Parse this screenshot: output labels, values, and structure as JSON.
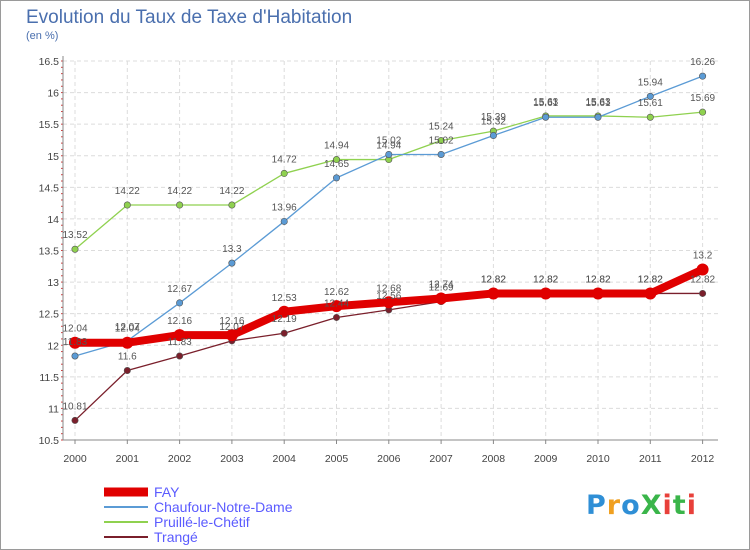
{
  "header": {
    "title": "Evolution du Taux de Taxe d'Habitation",
    "subtitle": "(en %)"
  },
  "logo": {
    "text": "ProXiti",
    "colors": [
      "#2f8fd6",
      "#f0a020",
      "#2f8fd6",
      "#3ab54a",
      "#e8403a",
      "#3ab54a",
      "#e8403a"
    ]
  },
  "chart_data": {
    "type": "line",
    "title": "Evolution du Taux de Taxe d'Habitation",
    "ylabel": "(en %)",
    "xlabel": "",
    "x": [
      "2000",
      "2001",
      "2002",
      "2003",
      "2004",
      "2005",
      "2006",
      "2007",
      "2008",
      "2009",
      "2010",
      "2011",
      "2012"
    ],
    "ylim": [
      10.5,
      16.5
    ],
    "yticks": [
      "10.5",
      "11",
      "11.5",
      "12",
      "12.5",
      "13",
      "13.5",
      "14",
      "14.5",
      "15",
      "15.5",
      "16",
      "16.5"
    ],
    "grid": true,
    "legend_position": "bottom-left",
    "series": [
      {
        "name": "FAY",
        "color": "#e00000",
        "values": [
          12.04,
          12.04,
          12.16,
          12.16,
          12.53,
          12.62,
          12.68,
          12.74,
          12.82,
          12.82,
          12.82,
          12.82,
          13.2
        ],
        "labels": [
          "12.04",
          "12.04",
          "12.16",
          "12.16",
          "12.53",
          "12.62",
          "12.68",
          "12.74",
          "12.82",
          "12.82",
          "12.82",
          "12.82",
          "13.2"
        ]
      },
      {
        "name": "Chaufour-Notre-Dame",
        "color": "#5b9bd5",
        "values": [
          11.83,
          12.07,
          12.67,
          13.3,
          13.96,
          14.65,
          15.02,
          15.02,
          15.32,
          15.61,
          15.61,
          15.94,
          16.26
        ],
        "labels": [
          "11.83",
          "12.07",
          "12.67",
          "13.3",
          "13.96",
          "14.65",
          "15.02",
          "15.02",
          "15.32",
          "15.61",
          "15.61",
          "15.94",
          "16.26"
        ]
      },
      {
        "name": "Pruillé-le-Chétif",
        "color": "#8fd14f",
        "values": [
          13.52,
          14.22,
          14.22,
          14.22,
          14.72,
          14.94,
          14.94,
          15.24,
          15.39,
          15.63,
          15.63,
          15.61,
          15.69
        ],
        "labels": [
          "13.52",
          "14.22",
          "14.22",
          "14.22",
          "14.72",
          "14.94",
          "14.94",
          "15.24",
          "15.39",
          "15.63",
          "15.63",
          "15.61",
          "15.69"
        ]
      },
      {
        "name": "Trangé",
        "color": "#7a1f2b",
        "values": [
          10.81,
          11.6,
          11.83,
          12.07,
          12.19,
          12.44,
          12.56,
          12.69,
          12.82,
          12.82,
          12.82,
          12.82,
          12.82
        ],
        "labels": [
          "10.81",
          "11.6",
          "11.83",
          "12.07",
          "12.19",
          "12.44",
          "12.56",
          "12.69",
          "12.82",
          "12.82",
          "12.82",
          "12.82",
          "12.82"
        ]
      }
    ]
  }
}
